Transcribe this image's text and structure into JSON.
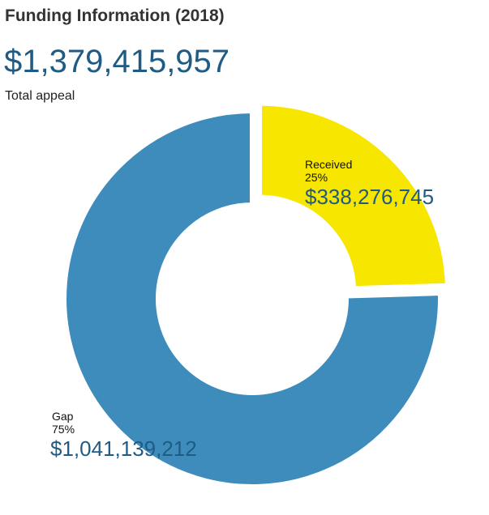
{
  "title": "Funding Information (2018)",
  "total": {
    "amount": "$1,379,415,957",
    "label": "Total appeal"
  },
  "colors": {
    "received": "#f7e600",
    "gap": "#3d8cbb",
    "amount_text": "#1f5b85"
  },
  "chart_data": {
    "type": "pie",
    "categories": [
      "Received",
      "Gap"
    ],
    "values": [
      338276745,
      1041139212
    ],
    "percent_labels": [
      "25%",
      "75%"
    ],
    "amount_labels": [
      "$338,276,745",
      "$1,041,139,212"
    ],
    "title": "Funding Information (2018)"
  }
}
